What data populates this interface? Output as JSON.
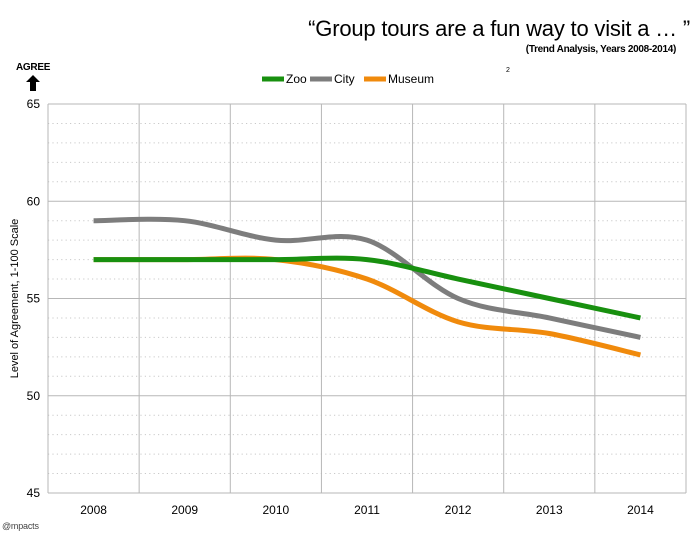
{
  "header": {
    "title": "“Group tours are a fun way to visit a … ”",
    "subtitle": "(Trend Analysis, Years 2008-2014)",
    "agree_label": "AGREE",
    "page_number": "2"
  },
  "footer": {
    "brand": "@mpacts"
  },
  "colors": {
    "Zoo": "#18900f",
    "City": "#7d7d7d",
    "Museum": "#f08a0c",
    "grid_major": "#b7b7b7",
    "grid_minor": "#c9c9c9"
  },
  "chart_data": {
    "type": "line",
    "title": "“Group tours are a fun way to visit a … ”",
    "subtitle": "(Trend Analysis, Years 2008-2014)",
    "xlabel": "",
    "ylabel": "Level of Agreement, 1-100 Scale",
    "x": [
      "2008",
      "2009",
      "2010",
      "2011",
      "2012",
      "2013",
      "2014"
    ],
    "ylim": [
      45,
      65
    ],
    "yticks": [
      45,
      50,
      55,
      60,
      65
    ],
    "grid": true,
    "legend_position": "top",
    "series": [
      {
        "name": "Zoo",
        "values": [
          57,
          57,
          57,
          57,
          56,
          55,
          54
        ]
      },
      {
        "name": "City",
        "values": [
          59,
          59,
          58,
          58,
          55,
          54,
          53
        ]
      },
      {
        "name": "Museum",
        "values": [
          57,
          57,
          57,
          56,
          53.8,
          53.2,
          52.1
        ]
      }
    ]
  }
}
